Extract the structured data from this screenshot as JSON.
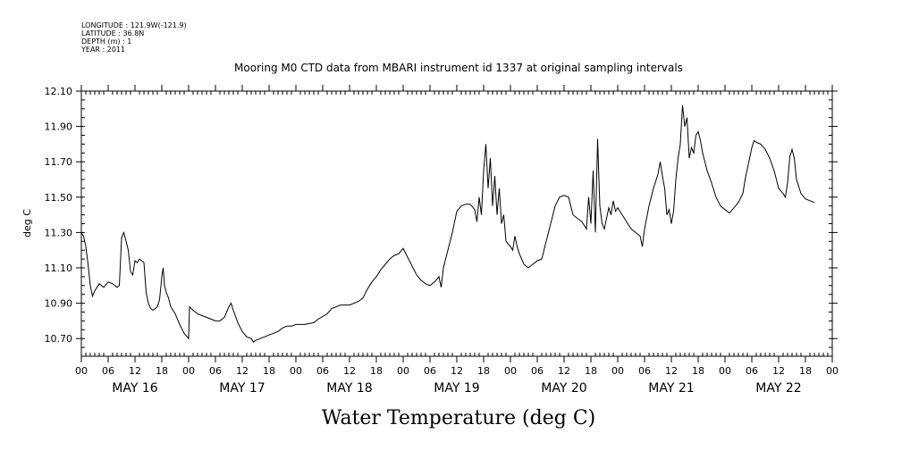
{
  "header": {
    "meta_lines": [
      "LONGITUDE : 121.9W(-121.9)",
      "LATITUDE : 36.8N",
      "DEPTH (m) : 1",
      "YEAR : 2011"
    ],
    "title": "Mooring M0 CTD data from MBARI instrument id 1337 at original sampling intervals"
  },
  "chart_data": {
    "type": "line",
    "title": "Mooring M0 CTD data from MBARI instrument id 1337 at original sampling intervals",
    "xlabel": "Water Temperature (deg C)",
    "ylabel": "deg C",
    "x_unit": "hours since 2011-05-16 00:00",
    "xlim": [
      0,
      168
    ],
    "ylim": [
      10.6,
      12.1
    ],
    "y_ticks": [
      "10.70",
      "10.90",
      "11.10",
      "11.30",
      "11.50",
      "11.70",
      "11.90",
      "12.10"
    ],
    "hour_ticks": [
      "00",
      "06",
      "12",
      "18",
      "00",
      "06",
      "12",
      "18",
      "00",
      "06",
      "12",
      "18",
      "00",
      "06",
      "12",
      "18",
      "00",
      "06",
      "12",
      "18",
      "00",
      "06",
      "12",
      "18",
      "00",
      "06",
      "12",
      "18",
      "00"
    ],
    "day_labels": [
      "MAY 16",
      "MAY 17",
      "MAY 18",
      "MAY 19",
      "MAY 20",
      "MAY 21",
      "MAY 22"
    ],
    "grid": false,
    "series": [
      {
        "color": "#000000",
        "points": [
          [
            0,
            11.3
          ],
          [
            0.5,
            11.28
          ],
          [
            1,
            11.22
          ],
          [
            1.5,
            11.12
          ],
          [
            2,
            11.0
          ],
          [
            2.5,
            10.94
          ],
          [
            3,
            10.97
          ],
          [
            3.5,
            10.99
          ],
          [
            4,
            11.01
          ],
          [
            5,
            10.99
          ],
          [
            6,
            11.02
          ],
          [
            7,
            11.01
          ],
          [
            8,
            10.99
          ],
          [
            8.5,
            11.0
          ],
          [
            9,
            11.27
          ],
          [
            9.5,
            11.3
          ],
          [
            10,
            11.25
          ],
          [
            10.5,
            11.2
          ],
          [
            11,
            11.08
          ],
          [
            11.5,
            11.06
          ],
          [
            12,
            11.14
          ],
          [
            12.5,
            11.13
          ],
          [
            13,
            11.15
          ],
          [
            14,
            11.13
          ],
          [
            14.5,
            10.96
          ],
          [
            15,
            10.9
          ],
          [
            15.5,
            10.87
          ],
          [
            16,
            10.86
          ],
          [
            17,
            10.88
          ],
          [
            17.5,
            10.92
          ],
          [
            18,
            11.05
          ],
          [
            18.3,
            11.1
          ],
          [
            18.6,
            11.0
          ],
          [
            19,
            10.96
          ],
          [
            19.5,
            10.93
          ],
          [
            20,
            10.88
          ],
          [
            21,
            10.84
          ],
          [
            22,
            10.78
          ],
          [
            23,
            10.73
          ],
          [
            24,
            10.7
          ],
          [
            24.2,
            10.88
          ],
          [
            25,
            10.86
          ],
          [
            26,
            10.84
          ],
          [
            27,
            10.83
          ],
          [
            28,
            10.82
          ],
          [
            29,
            10.81
          ],
          [
            30,
            10.8
          ],
          [
            31,
            10.8
          ],
          [
            32,
            10.82
          ],
          [
            33,
            10.88
          ],
          [
            33.5,
            10.9
          ],
          [
            34,
            10.86
          ],
          [
            35,
            10.79
          ],
          [
            36,
            10.74
          ],
          [
            37,
            10.71
          ],
          [
            38,
            10.7
          ],
          [
            38.5,
            10.68
          ],
          [
            39,
            10.69
          ],
          [
            40,
            10.7
          ],
          [
            41,
            10.71
          ],
          [
            42,
            10.72
          ],
          [
            43,
            10.73
          ],
          [
            44,
            10.74
          ],
          [
            45,
            10.76
          ],
          [
            46,
            10.77
          ],
          [
            47,
            10.77
          ],
          [
            48,
            10.78
          ],
          [
            50,
            10.78
          ],
          [
            52,
            10.79
          ],
          [
            53,
            10.81
          ],
          [
            55,
            10.84
          ],
          [
            56,
            10.87
          ],
          [
            58,
            10.89
          ],
          [
            60,
            10.89
          ],
          [
            62,
            10.91
          ],
          [
            63,
            10.93
          ],
          [
            64,
            10.98
          ],
          [
            65,
            11.02
          ],
          [
            66,
            11.05
          ],
          [
            67,
            11.09
          ],
          [
            68,
            11.12
          ],
          [
            69,
            11.15
          ],
          [
            70,
            11.17
          ],
          [
            71,
            11.18
          ],
          [
            72,
            11.21
          ],
          [
            73,
            11.16
          ],
          [
            74,
            11.11
          ],
          [
            75,
            11.06
          ],
          [
            76,
            11.03
          ],
          [
            77,
            11.01
          ],
          [
            78,
            11.0
          ],
          [
            79,
            11.02
          ],
          [
            80,
            11.05
          ],
          [
            80.5,
            10.99
          ],
          [
            81,
            11.1
          ],
          [
            82,
            11.2
          ],
          [
            83,
            11.3
          ],
          [
            84,
            11.42
          ],
          [
            85,
            11.45
          ],
          [
            86,
            11.46
          ],
          [
            87,
            11.46
          ],
          [
            88,
            11.43
          ],
          [
            88.5,
            11.36
          ],
          [
            89,
            11.5
          ],
          [
            89.5,
            11.4
          ],
          [
            90,
            11.65
          ],
          [
            90.5,
            11.8
          ],
          [
            91,
            11.55
          ],
          [
            91.5,
            11.72
          ],
          [
            92,
            11.45
          ],
          [
            92.5,
            11.62
          ],
          [
            93,
            11.4
          ],
          [
            93.5,
            11.55
          ],
          [
            94,
            11.35
          ],
          [
            94.5,
            11.4
          ],
          [
            95,
            11.25
          ],
          [
            96,
            11.22
          ],
          [
            96.5,
            11.2
          ],
          [
            97,
            11.28
          ],
          [
            97.5,
            11.22
          ],
          [
            98,
            11.18
          ],
          [
            99,
            11.12
          ],
          [
            100,
            11.1
          ],
          [
            101,
            11.12
          ],
          [
            102,
            11.14
          ],
          [
            103,
            11.15
          ],
          [
            104,
            11.25
          ],
          [
            105,
            11.35
          ],
          [
            106,
            11.45
          ],
          [
            107,
            11.5
          ],
          [
            108,
            11.51
          ],
          [
            109,
            11.5
          ],
          [
            110,
            11.4
          ],
          [
            111,
            11.38
          ],
          [
            112,
            11.36
          ],
          [
            113,
            11.32
          ],
          [
            113.5,
            11.5
          ],
          [
            114,
            11.35
          ],
          [
            114.5,
            11.65
          ],
          [
            115,
            11.3
          ],
          [
            115.5,
            11.83
          ],
          [
            116,
            11.45
          ],
          [
            116.5,
            11.35
          ],
          [
            117,
            11.32
          ],
          [
            117.5,
            11.38
          ],
          [
            118,
            11.44
          ],
          [
            118.5,
            11.4
          ],
          [
            119,
            11.48
          ],
          [
            119.5,
            11.42
          ],
          [
            120,
            11.44
          ],
          [
            121,
            11.4
          ],
          [
            122,
            11.36
          ],
          [
            123,
            11.32
          ],
          [
            124,
            11.3
          ],
          [
            125,
            11.28
          ],
          [
            125.5,
            11.22
          ],
          [
            126,
            11.32
          ],
          [
            127,
            11.45
          ],
          [
            128,
            11.55
          ],
          [
            129,
            11.63
          ],
          [
            129.5,
            11.7
          ],
          [
            130,
            11.62
          ],
          [
            130.5,
            11.55
          ],
          [
            131,
            11.4
          ],
          [
            131.5,
            11.43
          ],
          [
            132,
            11.35
          ],
          [
            132.5,
            11.42
          ],
          [
            133,
            11.6
          ],
          [
            133.5,
            11.72
          ],
          [
            134,
            11.8
          ],
          [
            134.5,
            12.02
          ],
          [
            135,
            11.9
          ],
          [
            135.5,
            11.95
          ],
          [
            136,
            11.72
          ],
          [
            136.5,
            11.78
          ],
          [
            137,
            11.75
          ],
          [
            137.5,
            11.85
          ],
          [
            138,
            11.87
          ],
          [
            138.5,
            11.82
          ],
          [
            139,
            11.75
          ],
          [
            140,
            11.65
          ],
          [
            141,
            11.58
          ],
          [
            142,
            11.5
          ],
          [
            143,
            11.45
          ],
          [
            144,
            11.43
          ],
          [
            145,
            11.41
          ],
          [
            146,
            11.44
          ],
          [
            147,
            11.47
          ],
          [
            148,
            11.52
          ],
          [
            148.5,
            11.6
          ],
          [
            149,
            11.66
          ],
          [
            150,
            11.78
          ],
          [
            150.5,
            11.82
          ],
          [
            151,
            11.81
          ],
          [
            152,
            11.8
          ],
          [
            153,
            11.77
          ],
          [
            154,
            11.72
          ],
          [
            155,
            11.65
          ],
          [
            156,
            11.55
          ],
          [
            157,
            11.52
          ],
          [
            157.5,
            11.5
          ],
          [
            158,
            11.58
          ],
          [
            158.5,
            11.73
          ],
          [
            159,
            11.77
          ],
          [
            159.5,
            11.72
          ],
          [
            160,
            11.6
          ],
          [
            161,
            11.52
          ],
          [
            162,
            11.49
          ],
          [
            163,
            11.48
          ],
          [
            164,
            11.47
          ]
        ]
      }
    ]
  }
}
